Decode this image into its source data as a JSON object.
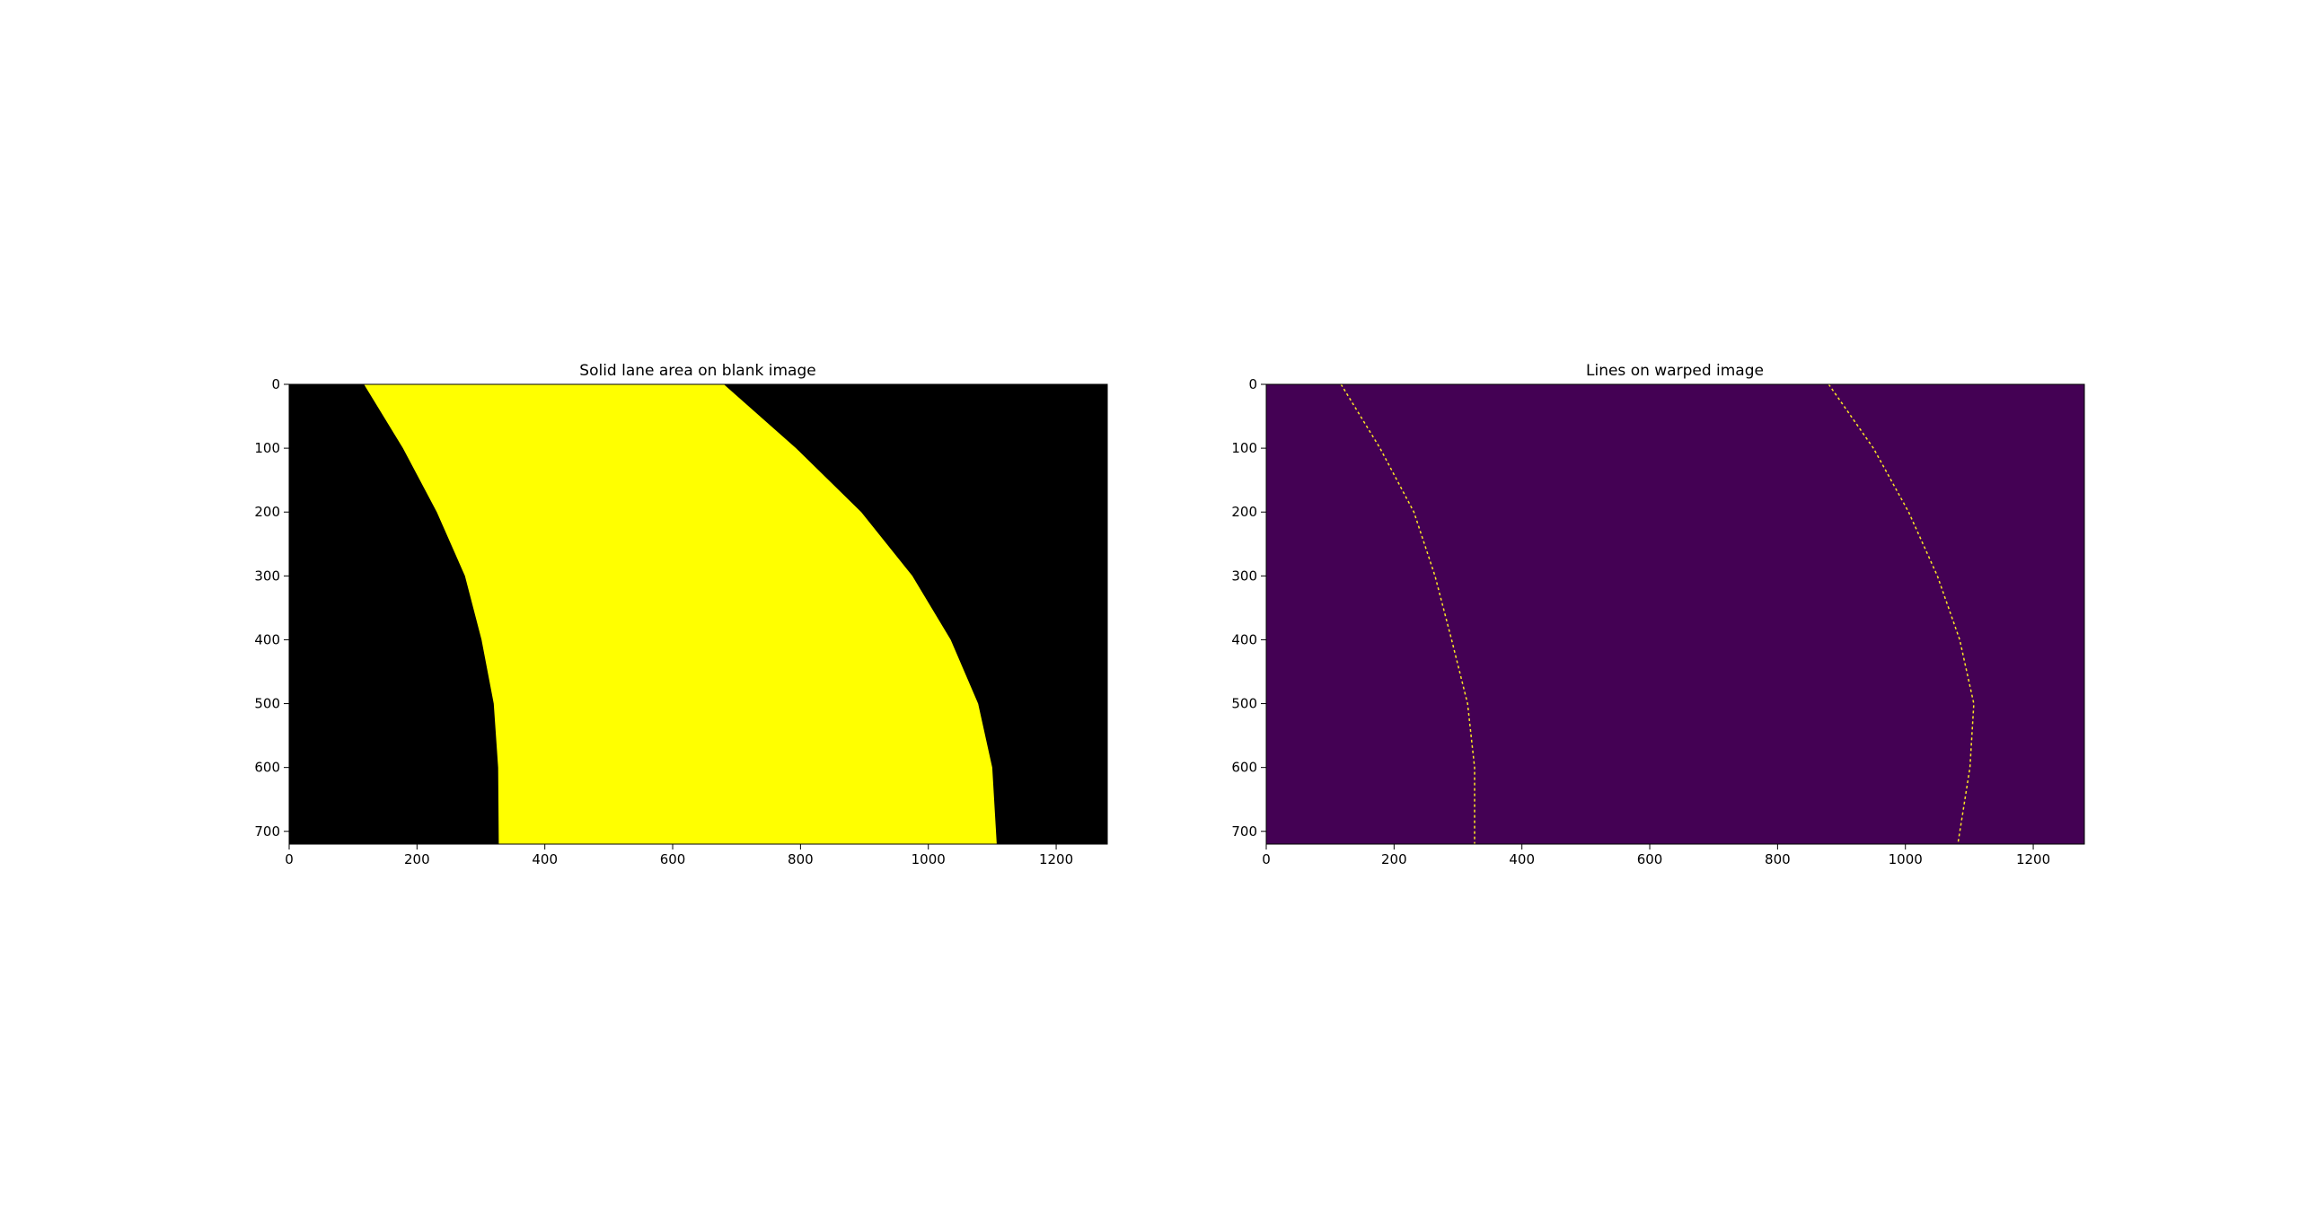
{
  "chart_data": [
    {
      "type": "image",
      "title": "Solid lane area on blank image",
      "background_color": "#000000",
      "fill_color": "#ffff00",
      "xlim": [
        0,
        1280
      ],
      "ylim": [
        720,
        0
      ],
      "x_ticks": [
        0,
        200,
        400,
        600,
        800,
        1000,
        1200
      ],
      "y_ticks": [
        0,
        100,
        200,
        300,
        400,
        500,
        600,
        700
      ],
      "x_tick_labels": [
        "0",
        "200",
        "400",
        "600",
        "800",
        "1000",
        "1200"
      ],
      "y_tick_labels": [
        "0",
        "100",
        "200",
        "300",
        "400",
        "500",
        "600",
        "700"
      ],
      "lane_polygon": {
        "left_boundary": [
          {
            "y": 0,
            "x": 117
          },
          {
            "y": 100,
            "x": 178
          },
          {
            "y": 200,
            "x": 231
          },
          {
            "y": 300,
            "x": 275
          },
          {
            "y": 400,
            "x": 301
          },
          {
            "y": 500,
            "x": 320
          },
          {
            "y": 600,
            "x": 327
          },
          {
            "y": 720,
            "x": 328
          }
        ],
        "right_boundary": [
          {
            "y": 0,
            "x": 680
          },
          {
            "y": 100,
            "x": 793
          },
          {
            "y": 200,
            "x": 895
          },
          {
            "y": 300,
            "x": 975
          },
          {
            "y": 400,
            "x": 1035
          },
          {
            "y": 500,
            "x": 1078
          },
          {
            "y": 600,
            "x": 1100
          },
          {
            "y": 720,
            "x": 1107
          }
        ]
      }
    },
    {
      "type": "image",
      "title": "Lines on warped image",
      "background_color": "#440154",
      "line_color": "#fde725",
      "xlim": [
        0,
        1280
      ],
      "ylim": [
        720,
        0
      ],
      "x_ticks": [
        0,
        200,
        400,
        600,
        800,
        1000,
        1200
      ],
      "y_ticks": [
        0,
        100,
        200,
        300,
        400,
        500,
        600,
        700
      ],
      "x_tick_labels": [
        "0",
        "200",
        "400",
        "600",
        "800",
        "1000",
        "1200"
      ],
      "y_tick_labels": [
        "0",
        "100",
        "200",
        "300",
        "400",
        "500",
        "600",
        "700"
      ],
      "series": [
        {
          "points": [
            {
              "y": 0,
              "x": 117
            },
            {
              "y": 100,
              "x": 178
            },
            {
              "y": 200,
              "x": 231
            },
            {
              "y": 300,
              "x": 264
            },
            {
              "y": 400,
              "x": 290
            },
            {
              "y": 500,
              "x": 315
            },
            {
              "y": 600,
              "x": 326
            },
            {
              "y": 720,
              "x": 326
            }
          ]
        },
        {
          "points": [
            {
              "y": 0,
              "x": 880
            },
            {
              "y": 100,
              "x": 950
            },
            {
              "y": 200,
              "x": 1005
            },
            {
              "y": 300,
              "x": 1050
            },
            {
              "y": 400,
              "x": 1085
            },
            {
              "y": 500,
              "x": 1107
            },
            {
              "y": 600,
              "x": 1101
            },
            {
              "y": 720,
              "x": 1082
            }
          ]
        }
      ]
    }
  ]
}
